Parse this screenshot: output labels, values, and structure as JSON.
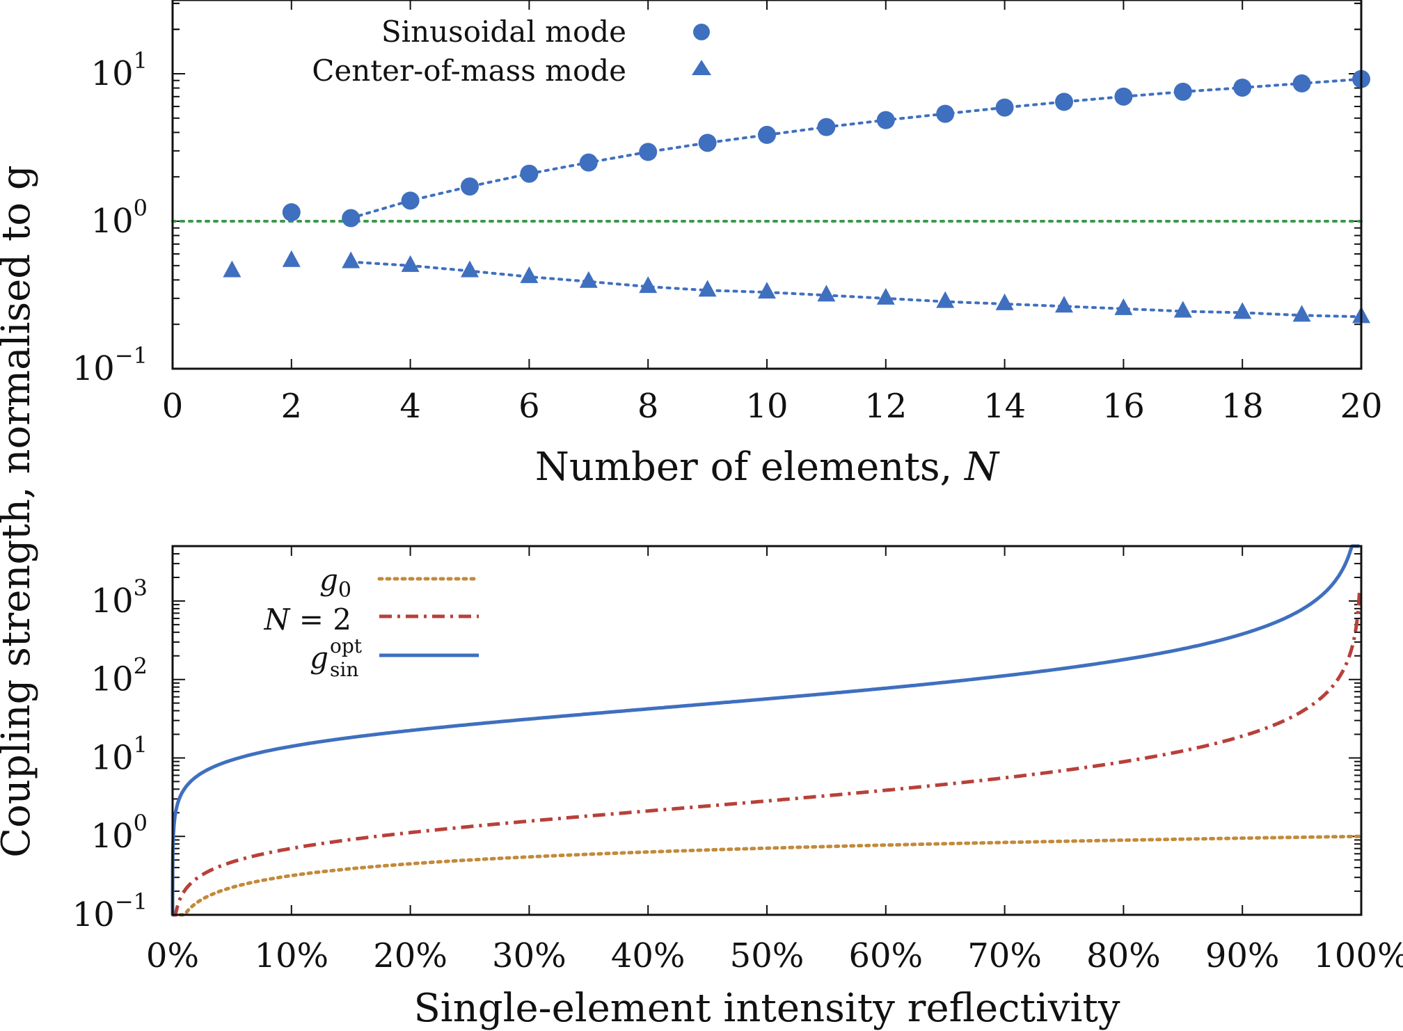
{
  "ylabel_shared": "Coupling strength, normalised to g",
  "chart_data": [
    {
      "type": "scatter",
      "xlabel": "Number of elements, N",
      "xlim": [
        0,
        20
      ],
      "ylim_log10": [
        -1,
        1.5
      ],
      "yscale": "log",
      "x_ticks": [
        0,
        2,
        4,
        6,
        8,
        10,
        12,
        14,
        16,
        18,
        20
      ],
      "y_ticks": [
        {
          "exp": 1,
          "value": 10
        },
        {
          "exp": 0,
          "value": 1
        },
        {
          "exp": -1,
          "value": 0.1
        }
      ],
      "legend_position": "top-center",
      "series": [
        {
          "name": "Sinusoidal mode",
          "marker": "circle",
          "color": "#3f6fbf",
          "x": [
            2,
            3,
            4,
            5,
            6,
            7,
            8,
            9,
            10,
            11,
            12,
            13,
            14,
            15,
            16,
            17,
            18,
            19,
            20
          ],
          "y": [
            1.15,
            1.05,
            1.38,
            1.72,
            2.1,
            2.5,
            2.95,
            3.4,
            3.85,
            4.35,
            4.85,
            5.35,
            5.9,
            6.45,
            7.0,
            7.55,
            8.05,
            8.6,
            9.2
          ]
        },
        {
          "name": "Center-of-mass mode",
          "marker": "triangle",
          "color": "#3f6fbf",
          "x": [
            1,
            2,
            3,
            4,
            5,
            6,
            7,
            8,
            9,
            10,
            11,
            12,
            13,
            14,
            15,
            16,
            17,
            18,
            19,
            20
          ],
          "y": [
            0.46,
            0.54,
            0.53,
            0.5,
            0.46,
            0.42,
            0.39,
            0.36,
            0.34,
            0.33,
            0.315,
            0.3,
            0.285,
            0.275,
            0.265,
            0.255,
            0.245,
            0.24,
            0.23,
            0.225
          ]
        }
      ],
      "fits": [
        {
          "of": "Sinusoidal mode",
          "style": "dotted",
          "color": "#3f6fbf",
          "x_from": 3,
          "x_to": 20
        },
        {
          "of": "Center-of-mass mode",
          "style": "dotted",
          "color": "#3f6fbf",
          "x_from": 3,
          "x_to": 20
        }
      ],
      "reference_line": {
        "y": 1,
        "style": "dotted",
        "color": "#3a9a4a"
      }
    },
    {
      "type": "line",
      "xlabel": "Single-element intensity reflectivity",
      "xlim": [
        0,
        100
      ],
      "ylim_log10": [
        -1,
        3.7
      ],
      "yscale": "log",
      "x_ticks": [
        "0%",
        "10%",
        "20%",
        "30%",
        "40%",
        "50%",
        "60%",
        "70%",
        "80%",
        "90%",
        "100%"
      ],
      "y_ticks": [
        {
          "exp": 3,
          "value": 1000
        },
        {
          "exp": 2,
          "value": 100
        },
        {
          "exp": 1,
          "value": 10
        },
        {
          "exp": 0,
          "value": 1
        },
        {
          "exp": -1,
          "value": 0.1
        }
      ],
      "legend_position": "top-left",
      "series": [
        {
          "key": "g0",
          "style": "dotted",
          "color": "#c28a3a",
          "model": "g0 = sqrt(R)"
        },
        {
          "key": "N2",
          "style": "dash-dot",
          "color": "#b8403a",
          "model": "2 sqrt(R) / (1 - R)"
        },
        {
          "key": "gopt",
          "style": "solid",
          "color": "#3f6fbf",
          "model": "2 sqrt(R) / (1 - R) * 20"
        }
      ]
    }
  ],
  "legend_bottom": {
    "g0": {
      "main": "g",
      "sub": "0"
    },
    "N2": {
      "italic": "N",
      "rest": " = 2"
    },
    "gopt": {
      "main": "g",
      "sup": "opt",
      "sub": "sin"
    }
  }
}
